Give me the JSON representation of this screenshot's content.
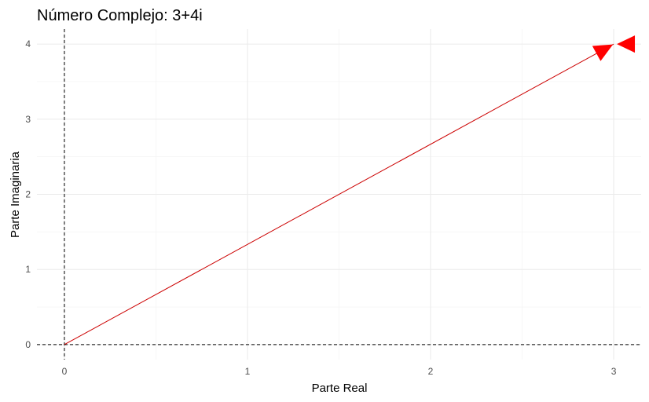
{
  "chart_data": {
    "type": "line",
    "title": "Número Complejo: 3+4i",
    "xlabel": "Parte Real",
    "ylabel": "Parte Imaginaria",
    "xlim": [
      -0.15,
      3.15
    ],
    "ylim": [
      -0.2,
      4.2
    ],
    "x_ticks": [
      0,
      1,
      2,
      3
    ],
    "y_ticks": [
      0,
      1,
      2,
      3,
      4
    ],
    "grid": true,
    "reference_lines": {
      "x": 0,
      "y": 0,
      "style": "dashed"
    },
    "series": [
      {
        "type": "arrow",
        "x": [
          0,
          3
        ],
        "y": [
          0,
          4
        ],
        "color": "#ff0000"
      }
    ],
    "point_color": "#ff0000",
    "line_color": "#cc0000"
  }
}
